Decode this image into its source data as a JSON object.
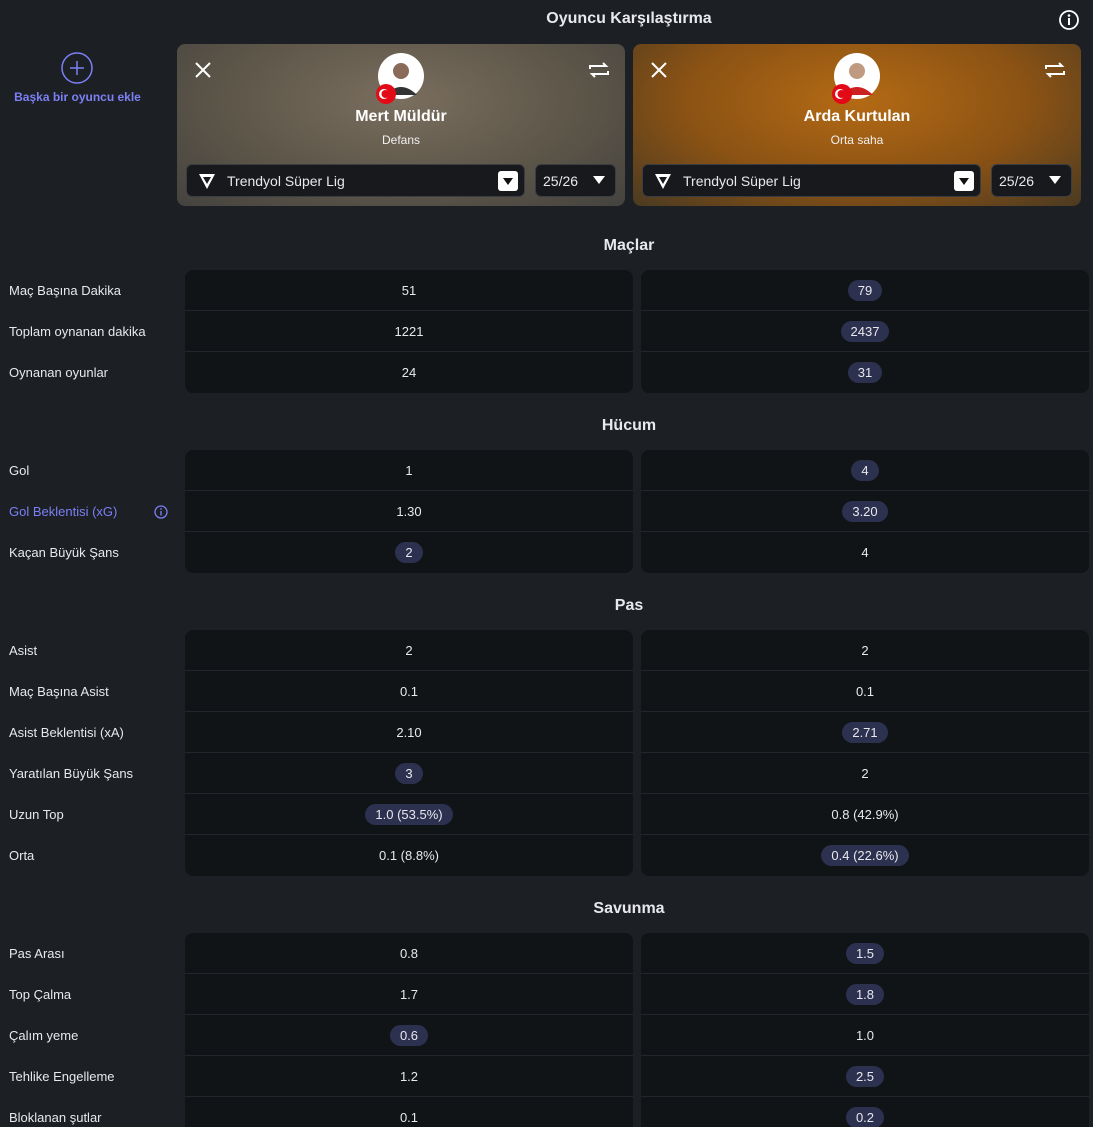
{
  "header": {
    "title": "Oyuncu Karşılaştırma"
  },
  "add_player": "Başka bir oyuncu ekle",
  "players": [
    {
      "name": "Mert Müldür",
      "position": "Defans",
      "league": "Trendyol Süper Lig",
      "season": "25/26"
    },
    {
      "name": "Arda Kurtulan",
      "position": "Orta saha",
      "league": "Trendyol Süper Lig",
      "season": "25/26"
    }
  ],
  "sections": [
    {
      "title": "Maçlar",
      "rows": [
        {
          "label": "Maç Başına Dakika",
          "values": [
            "51",
            "79"
          ],
          "highlight": 1
        },
        {
          "label": "Toplam oynanan dakika",
          "values": [
            "1221",
            "2437"
          ],
          "highlight": 1
        },
        {
          "label": "Oynanan oyunlar",
          "values": [
            "24",
            "31"
          ],
          "highlight": 1
        }
      ]
    },
    {
      "title": "Hücum",
      "rows": [
        {
          "label": "Gol",
          "values": [
            "1",
            "4"
          ],
          "highlight": 1
        },
        {
          "label": "Gol Beklentisi (xG)",
          "values": [
            "1.30",
            "3.20"
          ],
          "highlight": 1,
          "info": true
        },
        {
          "label": "Kaçan Büyük Şans",
          "values": [
            "2",
            "4"
          ],
          "highlight": 0
        }
      ]
    },
    {
      "title": "Pas",
      "rows": [
        {
          "label": "Asist",
          "values": [
            "2",
            "2"
          ]
        },
        {
          "label": "Maç Başına Asist",
          "values": [
            "0.1",
            "0.1"
          ]
        },
        {
          "label": "Asist Beklentisi (xA)",
          "values": [
            "2.10",
            "2.71"
          ],
          "highlight": 1
        },
        {
          "label": "Yaratılan Büyük Şans",
          "values": [
            "3",
            "2"
          ],
          "highlight": 0
        },
        {
          "label": "Uzun Top",
          "values": [
            "1.0 (53.5%)",
            "0.8 (42.9%)"
          ],
          "highlight": 0
        },
        {
          "label": "Orta",
          "values": [
            "0.1 (8.8%)",
            "0.4 (22.6%)"
          ],
          "highlight": 1
        }
      ]
    },
    {
      "title": "Savunma",
      "rows": [
        {
          "label": "Pas Arası",
          "values": [
            "0.8",
            "1.5"
          ],
          "highlight": 1
        },
        {
          "label": "Top Çalma",
          "values": [
            "1.7",
            "1.8"
          ],
          "highlight": 1
        },
        {
          "label": "Çalım yeme",
          "values": [
            "0.6",
            "1.0"
          ],
          "highlight": 0
        },
        {
          "label": "Tehlike Engelleme",
          "values": [
            "1.2",
            "2.5"
          ],
          "highlight": 1
        },
        {
          "label": "Bloklanan şutlar",
          "values": [
            "0.1",
            "0.2"
          ],
          "highlight": 1
        }
      ]
    }
  ]
}
